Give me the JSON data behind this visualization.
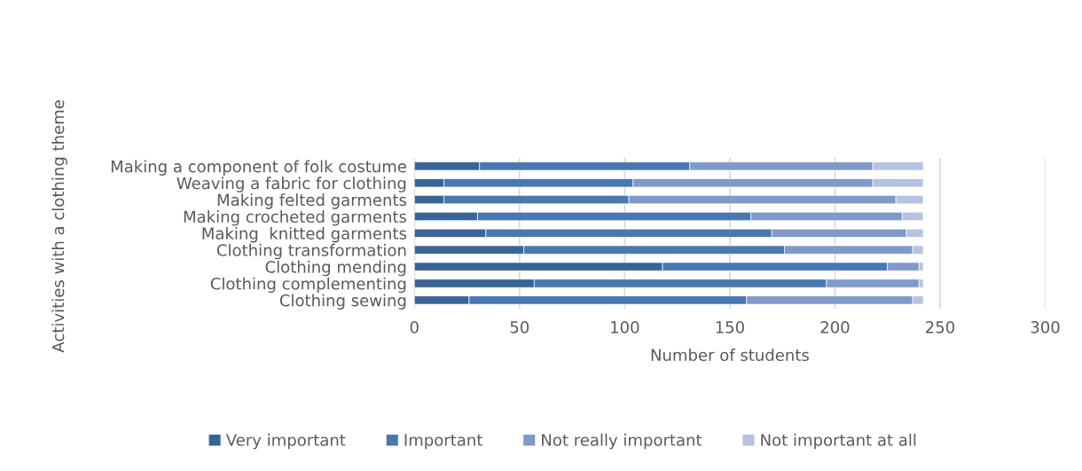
{
  "chart_data": {
    "type": "bar",
    "orientation": "horizontal",
    "stacked": true,
    "xlabel": "Number of students",
    "ylabel": "Activities with a clothing theme",
    "categories": [
      "Making a component of folk costume",
      "Weaving a fabric for clothing",
      "Making felted garments",
      "Making crocheted garments",
      "Making  knitted garments",
      "Clothing transformation",
      "Clothing mending",
      "Clothing complementing",
      "Clothing sewing"
    ],
    "series": [
      {
        "name": "Very important",
        "color": "#3a6496",
        "values": [
          31,
          14,
          14,
          30,
          34,
          52,
          118,
          57,
          26
        ]
      },
      {
        "name": "Important",
        "color": "#4878b0",
        "values": [
          100,
          90,
          88,
          130,
          136,
          124,
          107,
          139,
          132
        ]
      },
      {
        "name": "Not really important",
        "color": "#7f9ac8",
        "values": [
          87,
          114,
          127,
          72,
          64,
          61,
          15,
          44,
          79
        ]
      },
      {
        "name": "Not important at all",
        "color": "#b4c3e0",
        "values": [
          24,
          24,
          13,
          10,
          8,
          5,
          2,
          2,
          5
        ]
      }
    ],
    "xlim": [
      0,
      300
    ],
    "xticks": [
      0,
      50,
      100,
      150,
      200,
      250,
      300
    ],
    "grid": "x",
    "legend": "bottom"
  }
}
